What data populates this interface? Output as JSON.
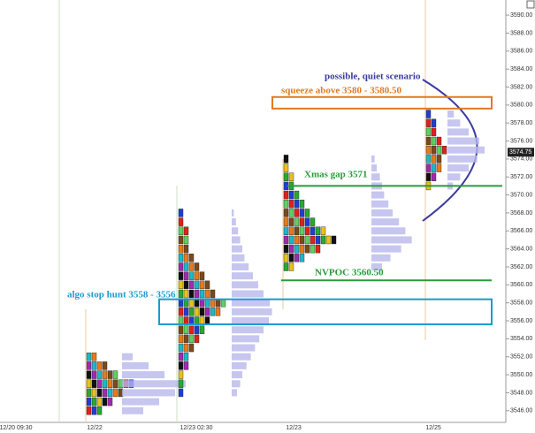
{
  "chart_data": {
    "type": "market_profile",
    "ylim": [
      3544.7,
      3590.7
    ],
    "yticks": [
      {
        "value": 3590,
        "label": "3590.00"
      },
      {
        "value": 3588,
        "label": "3588.00"
      },
      {
        "value": 3586,
        "label": "3586.00"
      },
      {
        "value": 3584,
        "label": "3584.00"
      },
      {
        "value": 3582,
        "label": "3582.00"
      },
      {
        "value": 3580,
        "label": "3580.00"
      },
      {
        "value": 3578,
        "label": "3578.00"
      },
      {
        "value": 3576,
        "label": "3576.00"
      },
      {
        "value": 3574,
        "label": "3574.00"
      },
      {
        "value": 3572,
        "label": "3572.00"
      },
      {
        "value": 3570,
        "label": "3570.00"
      },
      {
        "value": 3568,
        "label": "3568.00"
      },
      {
        "value": 3566,
        "label": "3566.00"
      },
      {
        "value": 3564,
        "label": "3564.00"
      },
      {
        "value": 3562,
        "label": "3562.00"
      },
      {
        "value": 3560,
        "label": "3560.00"
      },
      {
        "value": 3558,
        "label": "3558.00"
      },
      {
        "value": 3556,
        "label": "3556.00"
      },
      {
        "value": 3554,
        "label": "3554.00"
      },
      {
        "value": 3552,
        "label": "3552.00"
      },
      {
        "value": 3550,
        "label": "3550.00"
      },
      {
        "value": 3548,
        "label": "3548.00"
      },
      {
        "value": 3546,
        "label": "3546.00"
      }
    ],
    "x_labels": [
      "12/20 09:30",
      "12/22",
      "12/23 02:30",
      "12/23",
      "12/25"
    ],
    "tpo_colors": [
      "#e0211b",
      "#1f3fd1",
      "#2aa832",
      "#e8c21a",
      "#101010",
      "#a02ab0",
      "#1cb8c8",
      "#e87a1a",
      "#7a4a1a",
      "#5fd05f"
    ],
    "volume_color": "#b8b8ec",
    "sessions": [
      {
        "low": 3546,
        "counts": [
          3,
          5,
          7,
          9,
          6,
          4,
          2
        ],
        "volume": [
          20,
          35,
          50,
          60,
          40,
          25,
          10
        ]
      },
      {
        "low": 3548,
        "counts": [
          1,
          1,
          1,
          2,
          2,
          3,
          4,
          5,
          6,
          8,
          9,
          7,
          6,
          5,
          4,
          3,
          2,
          2,
          2,
          1,
          1
        ],
        "volume": [
          5,
          8,
          10,
          14,
          18,
          22,
          26,
          30,
          35,
          38,
          36,
          30,
          25,
          20,
          16,
          12,
          10,
          8,
          6,
          4,
          2
        ]
      },
      {
        "low": 3562,
        "counts": [
          2,
          4,
          7,
          10,
          8,
          6,
          5,
          4,
          3,
          2,
          2,
          1,
          1
        ],
        "volume": [
          10,
          18,
          28,
          38,
          32,
          26,
          20,
          16,
          12,
          10,
          8,
          5,
          3
        ]
      },
      {
        "low": 3571,
        "counts": [
          1,
          2,
          3,
          3,
          4,
          3,
          2,
          2,
          1
        ],
        "volume": [
          5,
          12,
          20,
          28,
          35,
          30,
          20,
          12,
          6
        ]
      }
    ],
    "last_price": {
      "value": 3574.75,
      "label": "3574.75"
    },
    "annotations": {
      "scenario": {
        "text": "possible, quiet scenario",
        "color": "#3a3aa0"
      },
      "squeeze": {
        "text": "squeeze above 3580 - 3580.50",
        "color": "#e07a20",
        "range": [
          3580,
          3580.5
        ]
      },
      "gap": {
        "text": "Xmas gap 3571",
        "color": "#2a9a3a",
        "value": 3571
      },
      "nvpoc": {
        "text": "NVPOC 3560.50",
        "color": "#2a9a3a",
        "value": 3560.5
      },
      "hunt": {
        "text": "algo stop hunt 3558 - 3556",
        "color": "#1a9ad0",
        "range": [
          3556,
          3558
        ]
      }
    }
  }
}
